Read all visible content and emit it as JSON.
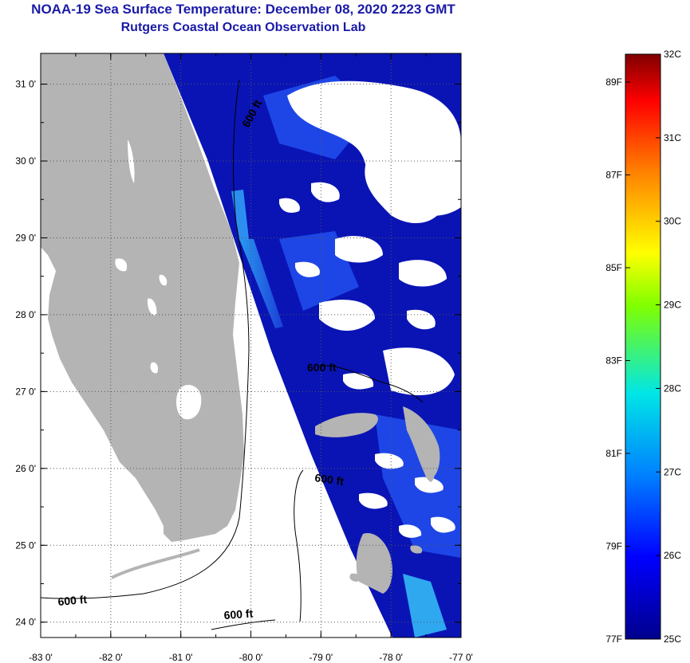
{
  "title": "NOAA-19 Sea Surface Temperature:  December 08, 2020 2223 GMT",
  "subtitle": "Rutgers Coastal Ocean Observation Lab",
  "map": {
    "lon_range": [
      -83,
      -77
    ],
    "lat_range": [
      23.8,
      31.4
    ],
    "lon_ticks": [
      "-83 0'",
      "-82 0'",
      "-81 0'",
      "-80 0'",
      "-79 0'",
      "-78 0'",
      "-77 0'"
    ],
    "lat_ticks": [
      "24 0'",
      "25 0'",
      "26 0'",
      "27 0'",
      "28 0'",
      "29 0'",
      "30 0'",
      "31 0'"
    ],
    "contour_labels": [
      "600 ft",
      "600 ft",
      "600 ft",
      "600 ft",
      "600 ft"
    ],
    "colors": {
      "land": "#b4b4b4",
      "water_cold": "#0a14b4",
      "water_mid": "#1e46e6",
      "water_warm": "#2896f0",
      "cloud": "#ffffff"
    }
  },
  "colorbar": {
    "celsius_labels": [
      "32C",
      "31C",
      "30C",
      "29C",
      "28C",
      "27C",
      "26C",
      "25C"
    ],
    "fahrenheit_labels": [
      "89F",
      "87F",
      "85F",
      "83F",
      "81F",
      "79F",
      "77F"
    ]
  }
}
